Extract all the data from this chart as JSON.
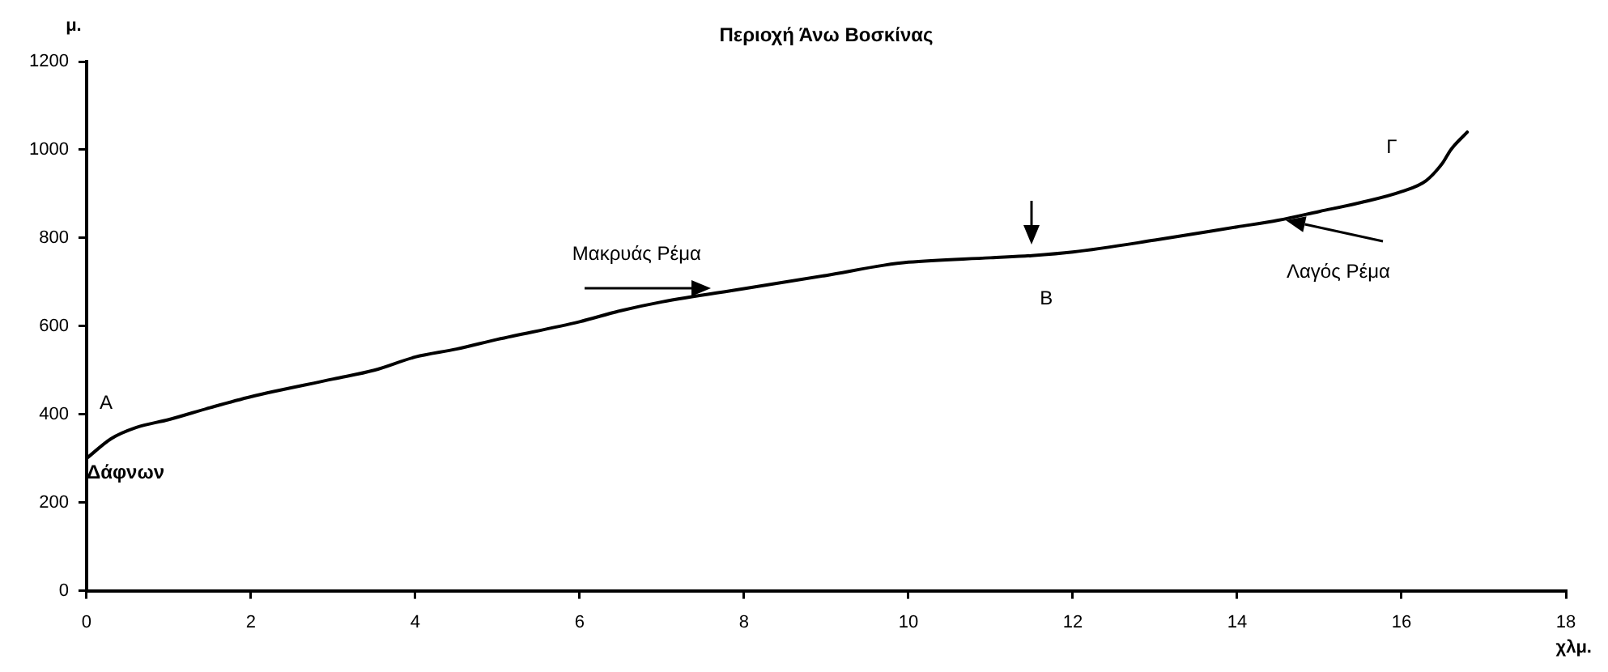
{
  "chart_data": {
    "type": "line",
    "title": "Περιοχή Άνω Βοσκίνας",
    "xlabel": "χλμ.",
    "ylabel": "μ.",
    "x": [
      0,
      0.3,
      0.6,
      1,
      1.5,
      2,
      3,
      3.5,
      4,
      4.5,
      5,
      6,
      6.5,
      7,
      8,
      9,
      9.7,
      10,
      11,
      11.5,
      12,
      13,
      14,
      14.5,
      15,
      15.5,
      16,
      16.3,
      16.5,
      16.6,
      16.8
    ],
    "series": [
      {
        "color": "#000000",
        "values": [
          300,
          345,
          370,
          388,
          415,
          440,
          480,
          500,
          530,
          548,
          570,
          610,
          635,
          655,
          685,
          715,
          738,
          745,
          755,
          760,
          768,
          795,
          825,
          840,
          860,
          880,
          905,
          930,
          970,
          1000,
          1040
        ]
      }
    ],
    "xlim": [
      0,
      18
    ],
    "xticks": [
      0,
      2,
      4,
      6,
      8,
      10,
      12,
      14,
      16,
      18
    ],
    "ylim": [
      0,
      1200
    ],
    "yticks": [
      0,
      200,
      400,
      600,
      800,
      1000,
      1200
    ],
    "grid": false,
    "legend": false,
    "marker": "none",
    "line_style": "solid",
    "annotations": [
      {
        "text": "Α",
        "x": 0,
        "y": 300
      },
      {
        "text": "Δάφνων",
        "x": 0,
        "y": 300
      },
      {
        "text": "Μακρυάς Ρέμα",
        "x": 7.6,
        "y": 685
      },
      {
        "text": "Β",
        "x": 11.5,
        "y": 760
      },
      {
        "text": "Λαγός Ρέμα",
        "x": 14.6,
        "y": 840
      },
      "Γ"
    ]
  }
}
